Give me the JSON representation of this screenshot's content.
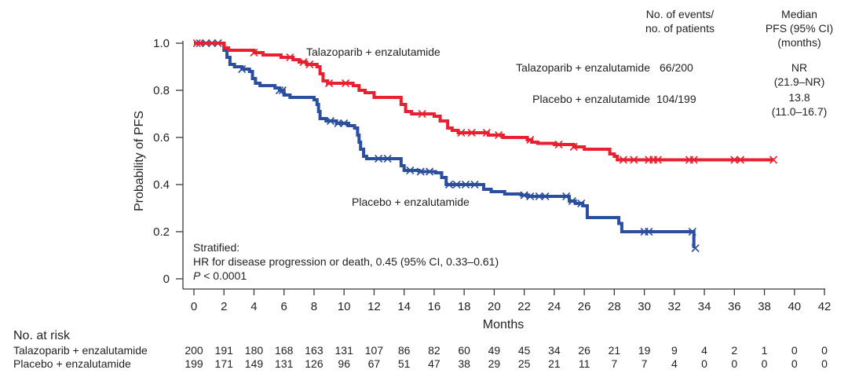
{
  "chart_data": {
    "type": "line",
    "subtype": "kaplan-meier",
    "title": "",
    "xlabel": "Months",
    "ylabel": "Probability of PFS",
    "xlim": [
      0,
      42
    ],
    "ylim": [
      0,
      1.0
    ],
    "x_ticks": [
      0,
      2,
      4,
      6,
      8,
      10,
      12,
      14,
      16,
      18,
      20,
      22,
      24,
      26,
      28,
      30,
      32,
      34,
      36,
      38,
      40,
      42
    ],
    "y_ticks": [
      {
        "value": 0,
        "label": "0"
      },
      {
        "value": 0.2,
        "label": "0.2"
      },
      {
        "value": 0.4,
        "label": "0.4"
      },
      {
        "value": 0.6,
        "label": "0.6"
      },
      {
        "value": 0.8,
        "label": "0.8"
      },
      {
        "value": 1.0,
        "label": "1.0"
      }
    ],
    "grid": false,
    "series": [
      {
        "name": "Talazoparib + enzalutamide",
        "color": "#e8202f",
        "curve_label": "Talazoparib + enzalutamide",
        "steps": [
          [
            0,
            1.0
          ],
          [
            1.9,
            1.0
          ],
          [
            2.0,
            0.98
          ],
          [
            2.3,
            0.97
          ],
          [
            4.0,
            0.96
          ],
          [
            4.6,
            0.95
          ],
          [
            5.8,
            0.94
          ],
          [
            6.6,
            0.93
          ],
          [
            7.0,
            0.92
          ],
          [
            7.5,
            0.91
          ],
          [
            8.2,
            0.9
          ],
          [
            8.4,
            0.87
          ],
          [
            8.6,
            0.84
          ],
          [
            8.9,
            0.83
          ],
          [
            10.6,
            0.82
          ],
          [
            11.0,
            0.8
          ],
          [
            11.4,
            0.79
          ],
          [
            12.0,
            0.77
          ],
          [
            13.6,
            0.77
          ],
          [
            13.8,
            0.74
          ],
          [
            14.1,
            0.71
          ],
          [
            14.5,
            0.7
          ],
          [
            16.0,
            0.69
          ],
          [
            16.4,
            0.67
          ],
          [
            16.9,
            0.64
          ],
          [
            17.2,
            0.63
          ],
          [
            17.6,
            0.62
          ],
          [
            19.2,
            0.62
          ],
          [
            19.6,
            0.61
          ],
          [
            20.6,
            0.6
          ],
          [
            22.2,
            0.59
          ],
          [
            22.5,
            0.58
          ],
          [
            22.9,
            0.575
          ],
          [
            24.0,
            0.57
          ],
          [
            25.1,
            0.57
          ],
          [
            25.3,
            0.56
          ],
          [
            26.0,
            0.55
          ],
          [
            27.5,
            0.55
          ],
          [
            27.7,
            0.53
          ],
          [
            28.0,
            0.52
          ],
          [
            28.2,
            0.505
          ],
          [
            38.6,
            0.505
          ]
        ],
        "censor_marks": [
          0.2,
          4.0,
          6.4,
          7.3,
          7.7,
          9.0,
          10.1,
          15.2,
          17.8,
          18.5,
          19.5,
          20.3,
          22.4,
          24.3,
          25.3,
          28.6,
          29.3,
          30.3,
          30.6,
          30.9,
          33.0,
          33.3,
          36.0,
          36.4,
          38.6
        ]
      },
      {
        "name": "Placebo + enzalutamide",
        "color": "#2b4f9e",
        "curve_label": "Placebo + enzalutamide",
        "steps": [
          [
            0,
            1.0
          ],
          [
            1.9,
            1.0
          ],
          [
            2.0,
            0.97
          ],
          [
            2.2,
            0.94
          ],
          [
            2.4,
            0.91
          ],
          [
            2.7,
            0.9
          ],
          [
            3.2,
            0.89
          ],
          [
            3.7,
            0.88
          ],
          [
            3.9,
            0.85
          ],
          [
            4.1,
            0.83
          ],
          [
            4.4,
            0.82
          ],
          [
            5.4,
            0.81
          ],
          [
            5.7,
            0.8
          ],
          [
            6.0,
            0.78
          ],
          [
            6.4,
            0.77
          ],
          [
            7.8,
            0.77
          ],
          [
            8.0,
            0.76
          ],
          [
            8.2,
            0.74
          ],
          [
            8.3,
            0.71
          ],
          [
            8.4,
            0.68
          ],
          [
            8.8,
            0.67
          ],
          [
            9.5,
            0.66
          ],
          [
            10.3,
            0.65
          ],
          [
            10.7,
            0.64
          ],
          [
            10.9,
            0.61
          ],
          [
            11.0,
            0.58
          ],
          [
            11.1,
            0.55
          ],
          [
            11.3,
            0.52
          ],
          [
            11.5,
            0.51
          ],
          [
            13.7,
            0.51
          ],
          [
            13.8,
            0.48
          ],
          [
            14.0,
            0.46
          ],
          [
            15.0,
            0.455
          ],
          [
            16.1,
            0.45
          ],
          [
            16.5,
            0.43
          ],
          [
            16.8,
            0.4
          ],
          [
            19.1,
            0.4
          ],
          [
            19.3,
            0.38
          ],
          [
            19.8,
            0.37
          ],
          [
            20.7,
            0.36
          ],
          [
            21.8,
            0.355
          ],
          [
            22.3,
            0.35
          ],
          [
            24.8,
            0.35
          ],
          [
            25.0,
            0.33
          ],
          [
            25.4,
            0.32
          ],
          [
            25.9,
            0.31
          ],
          [
            26.2,
            0.26
          ],
          [
            28.0,
            0.26
          ],
          [
            28.3,
            0.235
          ],
          [
            28.5,
            0.2
          ],
          [
            33.2,
            0.2
          ],
          [
            33.3,
            0.13
          ]
        ],
        "censor_marks": [
          0.4,
          0.8,
          1.2,
          1.6,
          3.2,
          5.7,
          5.9,
          9.1,
          9.6,
          10.0,
          12.3,
          12.9,
          14.4,
          15.1,
          15.7,
          17.0,
          17.5,
          18.1,
          18.7,
          22.0,
          22.4,
          23.0,
          23.4,
          24.8,
          25.2,
          25.8,
          30.0,
          30.3,
          33.2,
          33.4
        ]
      }
    ],
    "annotation": {
      "line1": "Stratified:",
      "line2": "HR for disease progression or death, 0.45 (95% CI, 0.33–0.61)",
      "p_label": "P",
      "p_value": " < 0.0001"
    },
    "summary_table": {
      "col1_header_line1": "No. of events/",
      "col1_header_line2": "no. of patients",
      "col2_header_line1": "Median",
      "col2_header_line2": "PFS (95% CI)",
      "col2_header_line3": "(months)",
      "rows": [
        {
          "label": "Talazoparib + enzalutamide",
          "events": "66/200",
          "median": "NR",
          "ci": "(21.9–NR)"
        },
        {
          "label": "Placebo + enzalutamide",
          "events": "104/199",
          "median": "13.8",
          "ci": "(11.0–16.7)"
        }
      ]
    },
    "risk_table": {
      "title": "No. at risk",
      "rows": [
        {
          "label": "Talazoparib + enzalutamide",
          "values": [
            200,
            191,
            180,
            168,
            163,
            131,
            107,
            86,
            82,
            60,
            49,
            45,
            34,
            26,
            21,
            19,
            9,
            4,
            2,
            1,
            0,
            0
          ]
        },
        {
          "label": "Placebo + enzalutamide",
          "values": [
            199,
            171,
            149,
            131,
            126,
            96,
            67,
            51,
            47,
            38,
            29,
            25,
            21,
            11,
            7,
            7,
            4,
            0,
            0,
            0,
            0,
            0
          ]
        }
      ]
    }
  }
}
